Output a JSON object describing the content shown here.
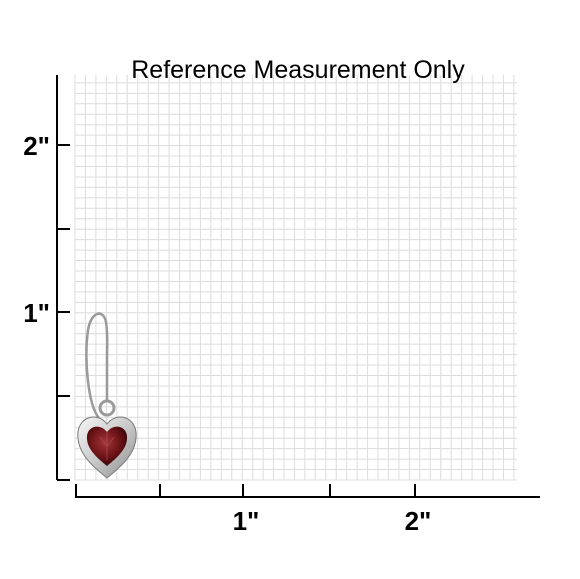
{
  "title": "Reference Measurement Only",
  "y_axis": {
    "labels": [
      "2\"",
      "1\""
    ]
  },
  "x_axis": {
    "labels": [
      "1\"",
      "2\""
    ]
  }
}
